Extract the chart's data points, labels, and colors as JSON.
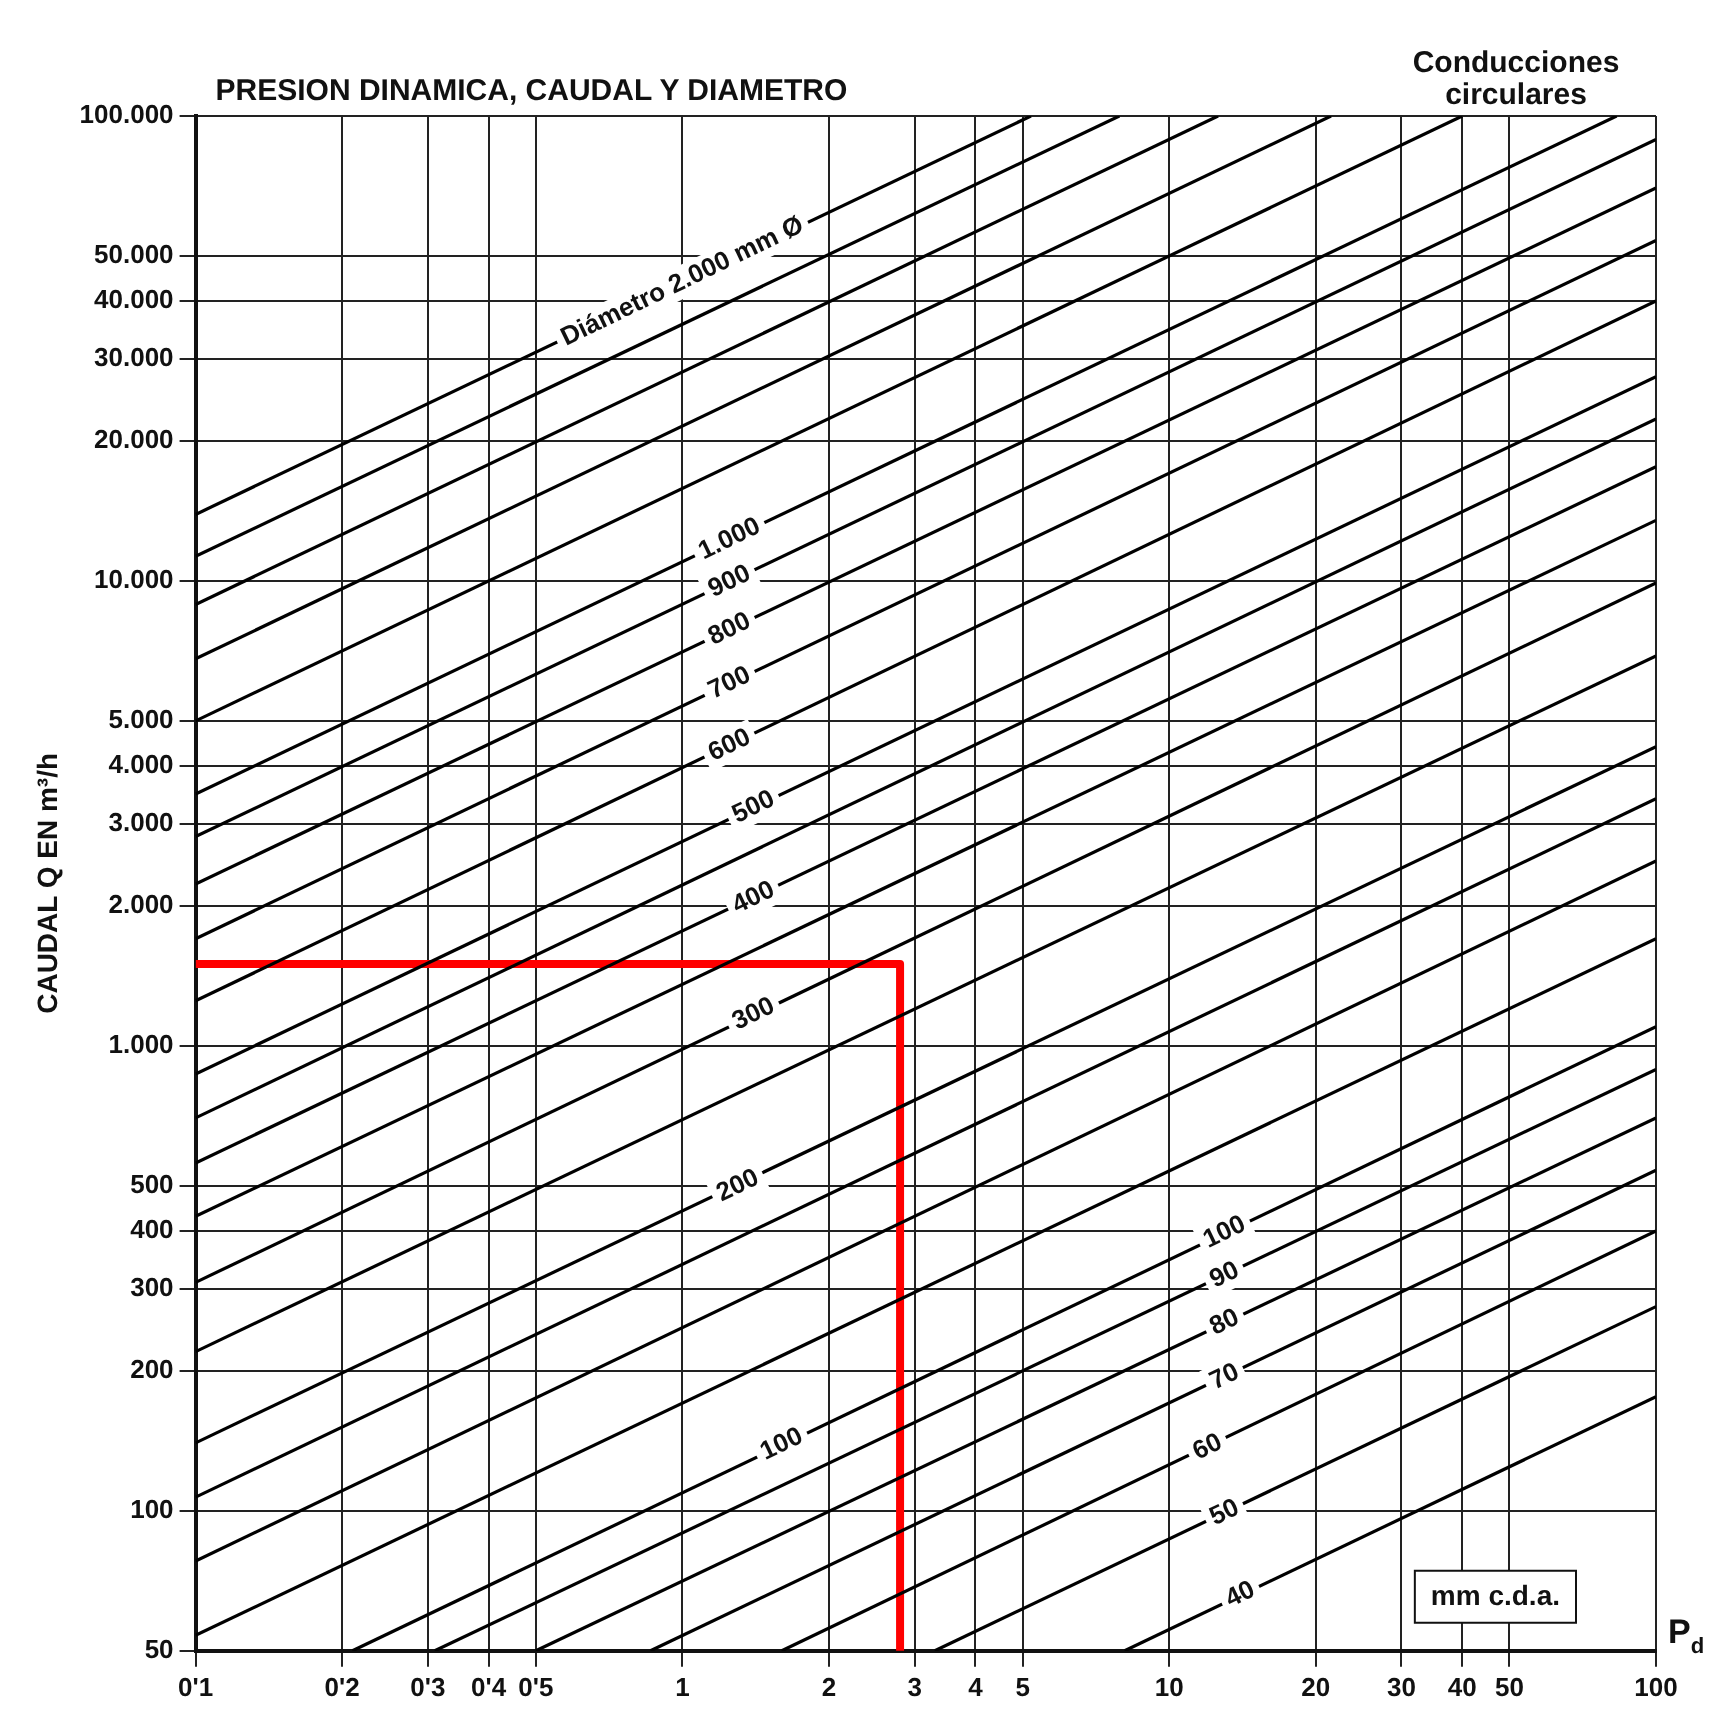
{
  "chart_data": {
    "type": "line",
    "title": "PRESION DINAMICA, CAUDAL Y DIAMETRO",
    "ylabel": "CAUDAL Q EN m³/h",
    "xlabel": "P$_{d}$",
    "log": "xy",
    "grid": true,
    "legend": false,
    "marker": "none",
    "line_style": "solid",
    "xlim": [
      0.1,
      100
    ],
    "ylim": [
      50,
      100000
    ],
    "xticks": [
      {
        "value": 0.1,
        "label": "0'1"
      },
      {
        "value": 0.2,
        "label": "0'2"
      },
      {
        "value": 0.3,
        "label": "0'3"
      },
      {
        "value": 0.4,
        "label": "0'4"
      },
      {
        "value": 0.5,
        "label": "0'5"
      },
      1,
      2,
      3,
      4,
      5,
      10,
      20,
      30,
      40,
      50,
      100
    ],
    "yticks": [
      50,
      100,
      200,
      300,
      400,
      500,
      {
        "value": 1000,
        "label": "1.000"
      },
      {
        "value": 2000,
        "label": "2.000"
      },
      {
        "value": 3000,
        "label": "3.000"
      },
      {
        "value": 4000,
        "label": "4.000"
      },
      {
        "value": 5000,
        "label": "5.000"
      },
      {
        "value": 10000,
        "label": "10.000"
      },
      {
        "value": 20000,
        "label": "20.000"
      },
      {
        "value": 30000,
        "label": "30.000"
      },
      {
        "value": 40000,
        "label": "40.000"
      },
      {
        "value": 50000,
        "label": "50.000"
      },
      {
        "value": 100000,
        "label": "100.000"
      }
    ],
    "series": [
      {
        "color": "#000000",
        "x": [
          0.1,
          5.2
        ],
        "values": [
          13900,
          100000
        ]
      },
      {
        "color": "#000000",
        "x": [
          0.1,
          7.9
        ],
        "values": [
          11300,
          100000
        ]
      },
      {
        "color": "#000000",
        "x": [
          0.1,
          12.6
        ],
        "values": [
          8900,
          100000
        ]
      },
      {
        "color": "#000000",
        "x": [
          0.1,
          21.5
        ],
        "values": [
          6800,
          100000
        ]
      },
      {
        "color": "#000000",
        "x": [
          0.1,
          40
        ],
        "values": [
          5000,
          100000
        ]
      },
      {
        "color": "#000000",
        "x": [
          0.1,
          83
        ],
        "values": [
          3480,
          100000
        ]
      },
      {
        "color": "#000000",
        "x": [
          0.1,
          100
        ],
        "values": [
          2820,
          89000
        ]
      },
      {
        "color": "#000000",
        "x": [
          0.1,
          100
        ],
        "values": [
          2230,
          70000
        ]
      },
      {
        "color": "#000000",
        "x": [
          0.1,
          100
        ],
        "values": [
          1700,
          54000
        ]
      },
      {
        "color": "#000000",
        "x": [
          0.1,
          100
        ],
        "values": [
          1250,
          40000
        ]
      },
      {
        "color": "#000000",
        "x": [
          0.1,
          100
        ],
        "values": [
          870,
          27500
        ]
      },
      {
        "color": "#000000",
        "x": [
          0.1,
          100
        ],
        "values": [
          700,
          22300
        ]
      },
      {
        "color": "#000000",
        "x": [
          0.1,
          100
        ],
        "values": [
          560,
          17600
        ]
      },
      {
        "color": "#000000",
        "x": [
          0.1,
          100
        ],
        "values": [
          430,
          13500
        ]
      },
      {
        "color": "#000000",
        "x": [
          0.1,
          100
        ],
        "values": [
          310,
          9900
        ]
      },
      {
        "color": "#000000",
        "x": [
          0.1,
          100
        ],
        "values": [
          220,
          6900
        ]
      },
      {
        "color": "#000000",
        "x": [
          0.1,
          100
        ],
        "values": [
          140,
          4400
        ]
      },
      {
        "color": "#000000",
        "x": [
          0.1,
          100
        ],
        "values": [
          107,
          3400
        ]
      },
      {
        "color": "#000000",
        "x": [
          0.1,
          100
        ],
        "values": [
          78,
          2500
        ]
      },
      {
        "color": "#000000",
        "x": [
          0.1,
          100
        ],
        "values": [
          54,
          1700
        ]
      },
      {
        "color": "#000000",
        "x": [
          0.21,
          100
        ],
        "values": [
          50,
          1100
        ]
      },
      {
        "color": "#000000",
        "x": [
          0.31,
          100
        ],
        "values": [
          50,
          890
        ]
      },
      {
        "color": "#000000",
        "x": [
          0.5,
          100
        ],
        "values": [
          50,
          700
        ]
      },
      {
        "color": "#000000",
        "x": [
          0.86,
          100
        ],
        "values": [
          50,
          540
        ]
      },
      {
        "color": "#000000",
        "x": [
          1.6,
          100
        ],
        "values": [
          50,
          400
        ]
      },
      {
        "color": "#000000",
        "x": [
          3.3,
          100
        ],
        "values": [
          50,
          275
        ]
      },
      {
        "color": "#000000",
        "x": [
          8.1,
          100
        ],
        "values": [
          50,
          176
        ]
      },
      {
        "color": "#ff0000",
        "x": [
          0.1,
          2.8,
          2.8
        ],
        "values": [
          1500,
          1500,
          50
        ]
      }
    ],
    "annotations": [
      "Conducciones circulares",
      "mm c.d.a.",
      {
        "text": "Diámetro 2.000 mm Ø",
        "x": 1.0,
        "y": 44000
      },
      {
        "text": "1.000",
        "x": 1.25,
        "y": 12300
      },
      {
        "text": "900",
        "x": 1.25,
        "y": 9960
      },
      {
        "text": "800",
        "x": 1.25,
        "y": 7870
      },
      {
        "text": "700",
        "x": 1.25,
        "y": 6030
      },
      {
        "text": "600",
        "x": 1.25,
        "y": 4430
      },
      {
        "text": "500",
        "x": 1.4,
        "y": 3260
      },
      {
        "text": "400",
        "x": 1.4,
        "y": 2080
      },
      {
        "text": "300",
        "x": 1.4,
        "y": 1170
      },
      {
        "text": "200",
        "x": 1.3,
        "y": 500
      },
      {
        "text": "100",
        "x": 1.6,
        "y": 139
      },
      {
        "text": "100",
        "x": 13,
        "y": 397
      },
      {
        "text": "90",
        "x": 13,
        "y": 321
      },
      {
        "text": "80",
        "x": 13,
        "y": 254
      },
      {
        "text": "70",
        "x": 13,
        "y": 194
      },
      {
        "text": "60",
        "x": 12,
        "y": 137
      },
      {
        "text": "50",
        "x": 13,
        "y": 99
      },
      {
        "text": "40",
        "x": 14,
        "y": 66
      }
    ]
  }
}
